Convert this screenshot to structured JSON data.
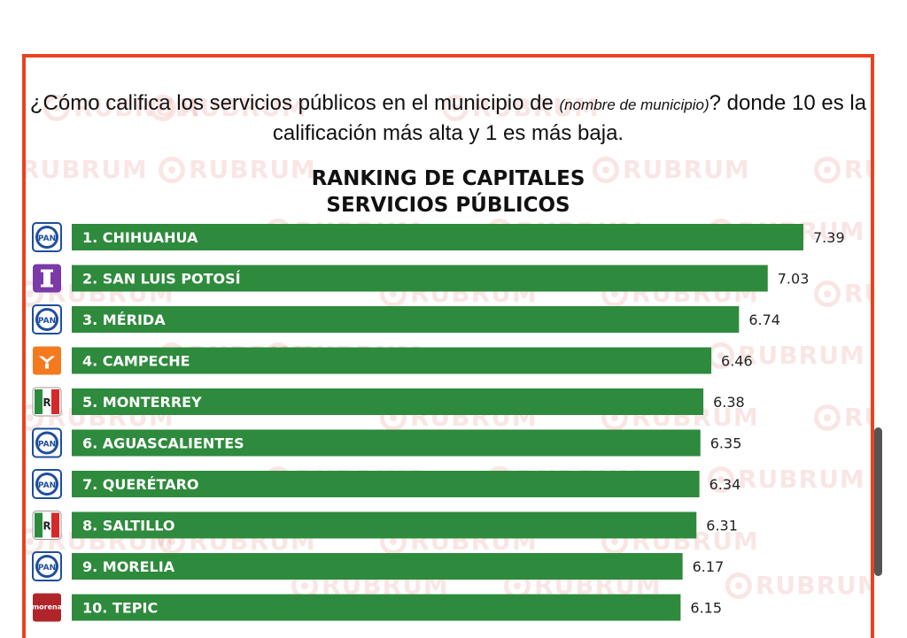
{
  "question": {
    "part1": "¿Cómo califica los servicios públicos en el municipio de ",
    "note": "(nombre de municipio)",
    "part2": "? donde 10 es la calificación más alta y 1 es más baja."
  },
  "watermark": "RUBRUM",
  "chart_data": {
    "type": "bar",
    "orientation": "horizontal",
    "title": "RANKING DE CAPITALES SERVICIOS PÚBLICOS",
    "title_line1": "RANKING DE CAPITALES",
    "title_line2": "SERVICIOS PÚBLICOS",
    "categories": [
      "1. CHIHUAHUA",
      "2. SAN LUIS POTOSÍ",
      "3. MÉRIDA",
      "4. CAMPECHE",
      "5. MONTERREY",
      "6. AGUASCALIENTES",
      "7. QUERÉTARO",
      "8. SALTILLO",
      "9. MORELIA",
      "10. TEPIC"
    ],
    "values": [
      7.39,
      7.03,
      6.74,
      6.46,
      6.38,
      6.35,
      6.34,
      6.31,
      6.17,
      6.15
    ],
    "value_labels": [
      "7.39",
      "7.03",
      "6.74",
      "6.46",
      "6.38",
      "6.35",
      "6.34",
      "6.31",
      "6.17",
      "6.15"
    ],
    "parties": [
      "PAN",
      "Independiente",
      "PAN",
      "MC",
      "PRI",
      "PAN",
      "PAN",
      "PRI",
      "PAN",
      "morena"
    ],
    "bar_color": "#2e8a3c",
    "xlim": [
      0,
      7.39
    ],
    "grid": false
  },
  "colors": {
    "frame": "#e8431f",
    "bar": "#2e8a3c",
    "watermark": "#d94a3a"
  }
}
